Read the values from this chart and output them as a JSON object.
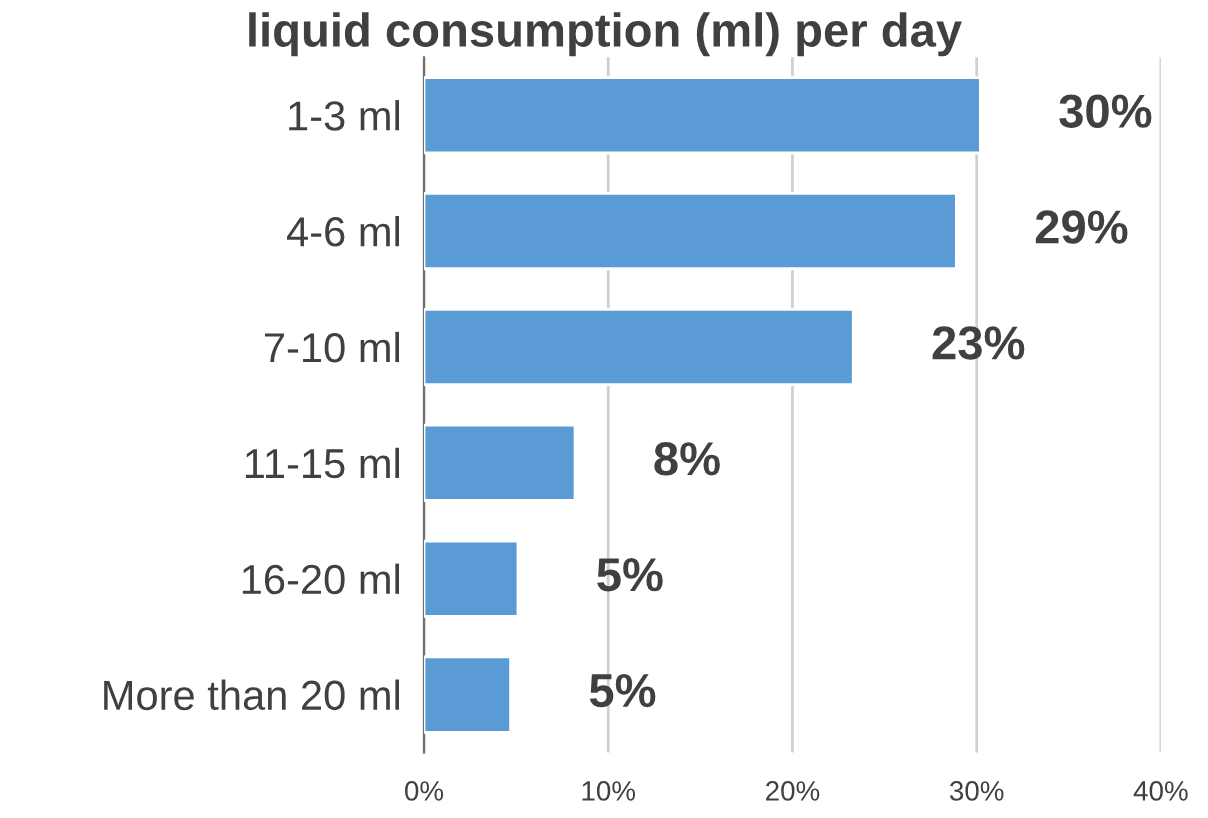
{
  "chart_data": {
    "type": "bar",
    "orientation": "horizontal",
    "title": "liquid consumption (ml) per day",
    "categories": [
      "1-3 ml",
      "4-6 ml",
      "7-10 ml",
      "11-15 ml",
      "16-20 ml",
      "More than 20 ml"
    ],
    "values": [
      30.2,
      28.9,
      23.3,
      8.2,
      5.1,
      4.7
    ],
    "value_labels": [
      "30%",
      "29%",
      "23%",
      "8%",
      "5%",
      "5%"
    ],
    "color": "#5b9bd5",
    "xlim": [
      0,
      40
    ],
    "xticks": [
      {
        "value": 0,
        "label": "0%"
      },
      {
        "value": 10,
        "label": "10%"
      },
      {
        "value": 20,
        "label": "20%"
      },
      {
        "value": 30,
        "label": "30%"
      },
      {
        "value": 40,
        "label": "40%"
      }
    ],
    "grid": "x"
  }
}
